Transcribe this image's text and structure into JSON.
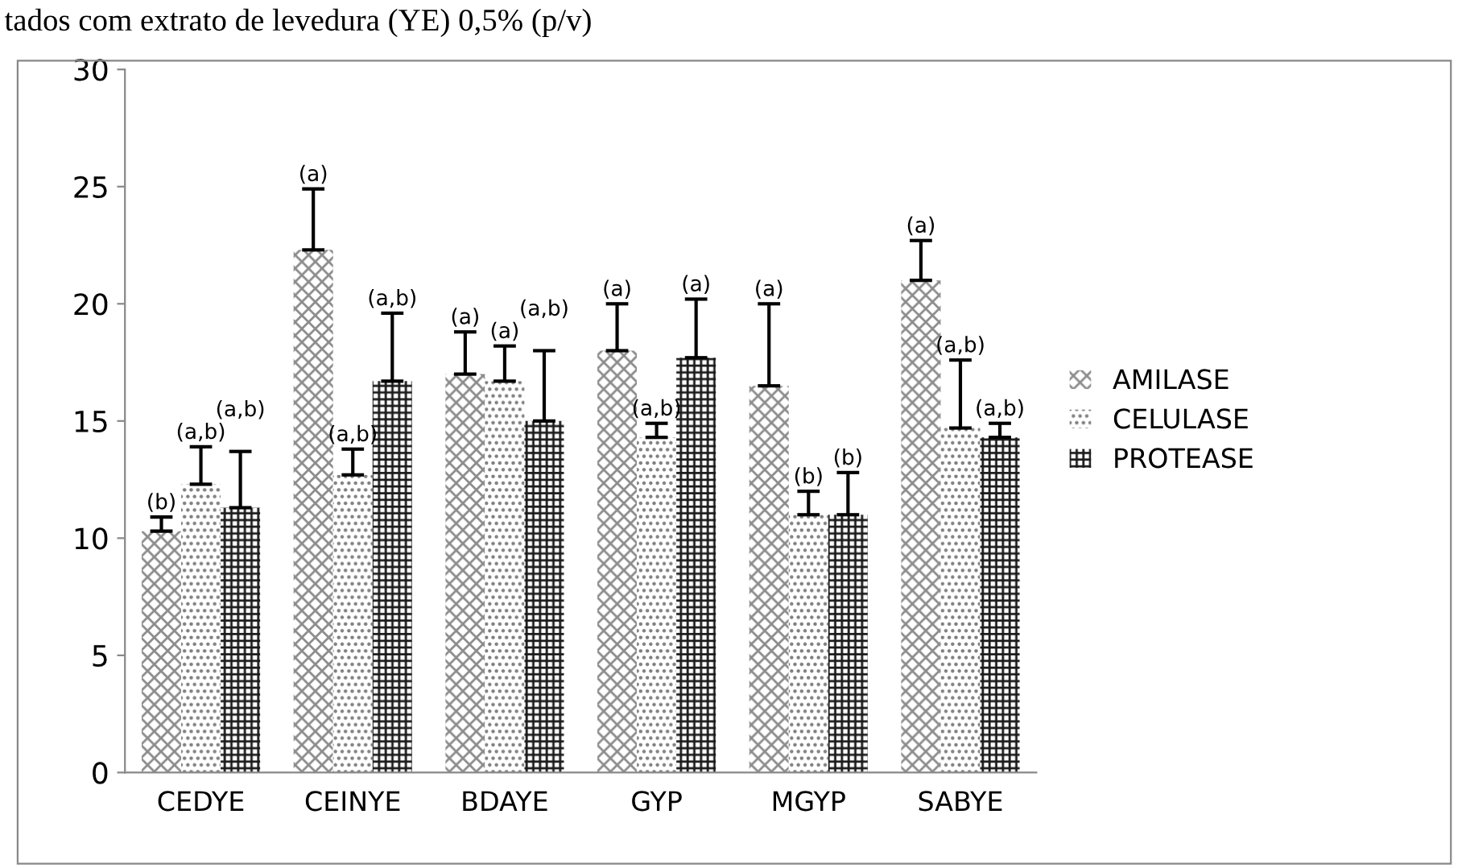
{
  "chart_data": {
    "type": "bar",
    "title": "tados com extrato de levedura (YE) 0,5% (p/v)",
    "categories": [
      "CEDYE",
      "CEINYE",
      "BDAYE",
      "GYP",
      "MGYP",
      "SABYE"
    ],
    "series": [
      {
        "name": "AMILASE",
        "color": "#8c8c8c",
        "values": [
          10.3,
          22.3,
          17.0,
          18.0,
          16.5,
          21.0
        ],
        "errors": [
          [
            10.3,
            10.9
          ],
          [
            22.3,
            24.9
          ],
          [
            17.0,
            18.8
          ],
          [
            18.0,
            20.0
          ],
          [
            16.5,
            20.0
          ],
          [
            21.0,
            22.7
          ]
        ]
      },
      {
        "name": "CELULASE",
        "color": "#7a7a7a",
        "values": [
          12.3,
          12.7,
          16.7,
          14.3,
          11.0,
          14.7
        ],
        "errors": [
          [
            12.3,
            13.9
          ],
          [
            12.7,
            13.8
          ],
          [
            16.7,
            18.2
          ],
          [
            14.3,
            14.9
          ],
          [
            11.0,
            12.0
          ],
          [
            14.7,
            17.6
          ]
        ]
      },
      {
        "name": "PROTEASE",
        "color": "#1a1a1a",
        "values": [
          11.3,
          16.7,
          15.0,
          17.7,
          11.0,
          14.3
        ],
        "errors": [
          [
            11.3,
            13.7
          ],
          [
            16.7,
            19.6
          ],
          [
            15.0,
            18.0
          ],
          [
            17.7,
            20.2
          ],
          [
            11.0,
            12.8
          ],
          [
            14.3,
            14.9
          ]
        ]
      }
    ],
    "annotations": [
      "(b)",
      "(a,b)",
      "(a,b)",
      "(a)",
      "(a,b)",
      "(a,b)",
      "(a)",
      "(a)",
      "(a,b)",
      "(a)",
      "(a,b)",
      "(a)",
      "(a)",
      "(b)",
      "(b)",
      "(a)",
      "(a,b)",
      "(a,b)"
    ],
    "ylim": [
      0,
      30
    ],
    "yticks": [
      0,
      5,
      10,
      15,
      20,
      25,
      30
    ],
    "grid": false,
    "legend": "right"
  }
}
